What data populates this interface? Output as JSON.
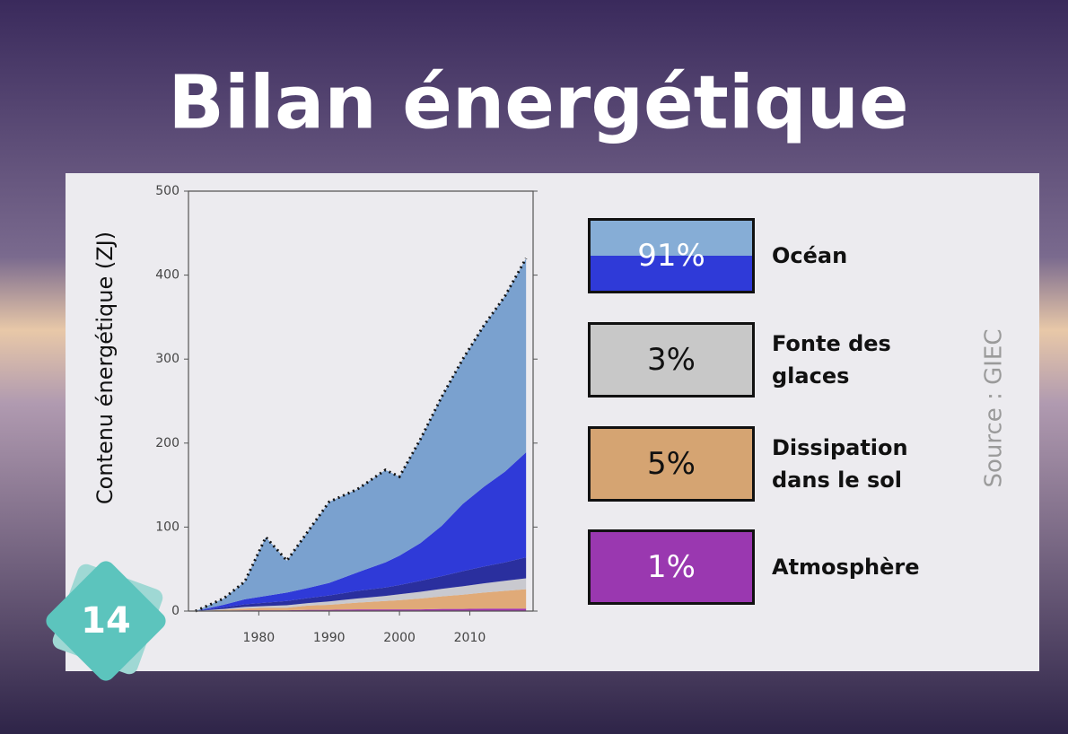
{
  "title": "Bilan énergétique",
  "card_number": "14",
  "source": "Source : GIEC",
  "chart_data": {
    "type": "area",
    "ylabel": "Contenu énergétique (ZJ)",
    "x": [
      1971,
      1975,
      1978,
      1981,
      1984,
      1987,
      1990,
      1994,
      1998,
      2000,
      2003,
      2006,
      2009,
      2012,
      2015,
      2018
    ],
    "series": [
      {
        "color": "#a035b0",
        "values": [
          0,
          0.5,
          1,
          1,
          1,
          1.5,
          1.5,
          2,
          2,
          2,
          2,
          2.5,
          2.5,
          3,
          3,
          3
        ]
      },
      {
        "color": "#e0aa78",
        "values": [
          0,
          1,
          2,
          3,
          3,
          5,
          6,
          8,
          10,
          11,
          13,
          15,
          17,
          19,
          21,
          23
        ]
      },
      {
        "color": "#c9c9cf",
        "values": [
          0,
          1,
          2,
          2,
          3,
          3,
          4,
          5,
          6,
          7,
          8,
          9,
          10,
          11,
          12,
          13
        ]
      },
      {
        "color": "#2a2f9e",
        "values": [
          0,
          2,
          3,
          4,
          5,
          6,
          7,
          9,
          10,
          11,
          13,
          15,
          18,
          20,
          22,
          25
        ]
      },
      {
        "color": "#2f3ad8",
        "values": [
          0,
          3,
          6,
          8,
          10,
          12,
          15,
          22,
          30,
          35,
          45,
          60,
          80,
          95,
          108,
          125
        ]
      },
      {
        "color": "#7aa1cf",
        "values": [
          0,
          7.5,
          21,
          70,
          38,
          67.5,
          96.5,
          99,
          110,
          94,
          124,
          153.5,
          172.5,
          192,
          209,
          231
        ]
      }
    ],
    "xlim": [
      1970,
      2019
    ],
    "ylim": [
      0,
      500
    ],
    "xticks": [
      1980,
      1990,
      2000,
      2010
    ],
    "yticks": [
      0,
      100,
      200,
      300,
      400,
      500
    ]
  },
  "legend": [
    {
      "label": "91%",
      "text": "Océan",
      "colors": [
        "#86add6",
        "#2f3ad8"
      ]
    },
    {
      "label": "3%",
      "text": "Fonte des glaces",
      "colors": [
        "#c8c8c8"
      ]
    },
    {
      "label": "5%",
      "text": "Dissipation dans le sol",
      "colors": [
        "#d5a472"
      ]
    },
    {
      "label": "1%",
      "text": "Atmosphère",
      "colors": [
        "#9a38b0"
      ]
    }
  ]
}
